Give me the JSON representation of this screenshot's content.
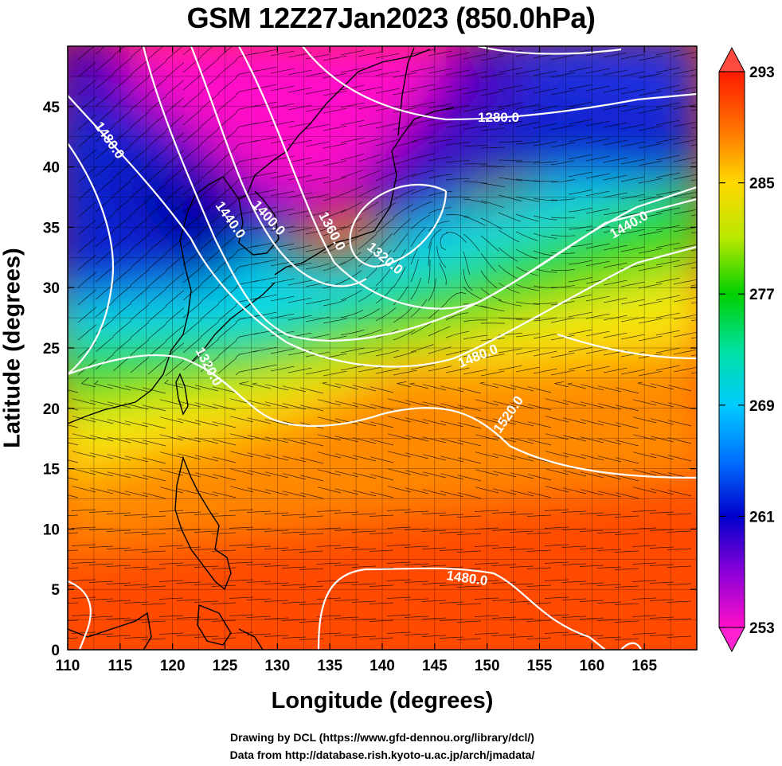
{
  "title": "GSM 12Z27Jan2023 (850.0hPa)",
  "xlabel": "Longitude (degrees)",
  "ylabel": "Latitude  (degrees)",
  "credits": [
    "Drawing by DCL (https://www.gfd-dennou.org/library/dcl/)",
    "Data from http://database.rish.kyoto-u.ac.jp/arch/jmadata/"
  ],
  "chart_data": {
    "type": "heatmap",
    "variable_shaded": "temperature (K)",
    "variable_contoured": "geopotential height",
    "x_range": [
      110,
      170
    ],
    "y_range": [
      0,
      50
    ],
    "x_ticks": [
      110,
      115,
      120,
      125,
      130,
      135,
      140,
      145,
      150,
      155,
      160,
      165
    ],
    "y_ticks": [
      0,
      5,
      10,
      15,
      20,
      25,
      30,
      35,
      40,
      45
    ],
    "colorbar": {
      "min": 253,
      "max": 293,
      "ticks": [
        253,
        261,
        269,
        277,
        285,
        293
      ]
    },
    "contour_labels": [
      "1280.0",
      "1360.0",
      "1400.0",
      "1440.0",
      "1480.0",
      "1320.0",
      "1440.0",
      "1320.0",
      "1480.0",
      "1520.0",
      "1480.0"
    ],
    "colors": {
      "coldest": "#ff00cc",
      "cold": "#0000cc",
      "cool": "#00d0ff",
      "mild": "#00dd00",
      "warm": "#ffee00",
      "warmest": "#ff2000",
      "contour": "#ffffff",
      "grid": "#000000"
    }
  }
}
